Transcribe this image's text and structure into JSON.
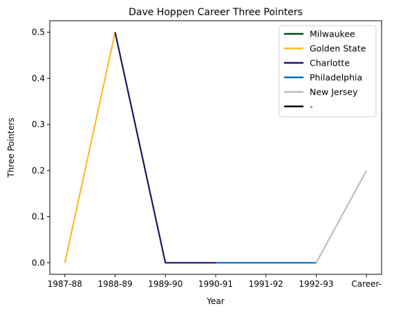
{
  "chart_data": {
    "type": "line",
    "title": "Dave Hoppen Career Three Pointers",
    "xlabel": "Year",
    "ylabel": "Three Pointers",
    "categories": [
      "1987-88",
      "1988-89",
      "1989-90",
      "1990-91",
      "1991-92",
      "1992-93",
      "Career-"
    ],
    "ylim": [
      -0.025,
      0.525
    ],
    "yticks": [
      "0.0",
      "0.1",
      "0.2",
      "0.3",
      "0.4",
      "0.5"
    ],
    "grid": false,
    "legend_position": "top-right",
    "series": [
      {
        "name": "Milwaukee",
        "color": "#00471b",
        "points": []
      },
      {
        "name": "Golden State",
        "color": "#fdb927",
        "points": [
          [
            0,
            0.0
          ],
          [
            1,
            0.5
          ]
        ]
      },
      {
        "name": "Charlotte",
        "color": "#1d1160",
        "points": [
          [
            1,
            0.5
          ],
          [
            2,
            0.0
          ],
          [
            3,
            0.0
          ]
        ]
      },
      {
        "name": "Philadelphia",
        "color": "#006bb6",
        "points": [
          [
            3,
            0.0
          ],
          [
            4,
            0.0
          ],
          [
            5,
            0.0
          ]
        ]
      },
      {
        "name": "New Jersey",
        "color": "#bdbdbd",
        "points": [
          [
            5,
            0.0
          ],
          [
            6,
            0.2
          ]
        ]
      },
      {
        "name": "-",
        "color": "#000000",
        "points": []
      }
    ]
  }
}
